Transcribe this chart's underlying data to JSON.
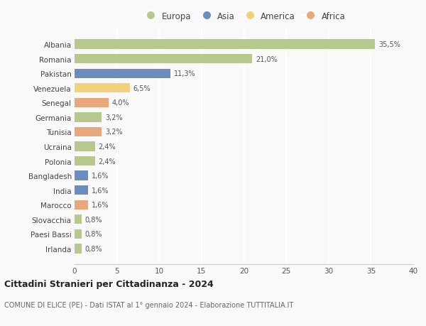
{
  "categories": [
    "Albania",
    "Romania",
    "Pakistan",
    "Venezuela",
    "Senegal",
    "Germania",
    "Tunisia",
    "Ucraina",
    "Polonia",
    "Bangladesh",
    "India",
    "Marocco",
    "Slovacchia",
    "Paesi Bassi",
    "Irlanda"
  ],
  "values": [
    35.5,
    21.0,
    11.3,
    6.5,
    4.0,
    3.2,
    3.2,
    2.4,
    2.4,
    1.6,
    1.6,
    1.6,
    0.8,
    0.8,
    0.8
  ],
  "labels": [
    "35,5%",
    "21,0%",
    "11,3%",
    "6,5%",
    "4,0%",
    "3,2%",
    "3,2%",
    "2,4%",
    "2,4%",
    "1,6%",
    "1,6%",
    "1,6%",
    "0,8%",
    "0,8%",
    "0,8%"
  ],
  "continents": [
    "Europa",
    "Europa",
    "Asia",
    "America",
    "Africa",
    "Europa",
    "Africa",
    "Europa",
    "Europa",
    "Asia",
    "Asia",
    "Africa",
    "Europa",
    "Europa",
    "Europa"
  ],
  "continent_colors": {
    "Europa": "#b5c98e",
    "Asia": "#6b8cbf",
    "America": "#f5d07a",
    "Africa": "#e8a87c"
  },
  "legend_order": [
    "Europa",
    "Asia",
    "America",
    "Africa"
  ],
  "xlim": [
    0,
    40
  ],
  "xticks": [
    0,
    5,
    10,
    15,
    20,
    25,
    30,
    35,
    40
  ],
  "title": "Cittadini Stranieri per Cittadinanza - 2024",
  "subtitle": "COMUNE DI ELICE (PE) - Dati ISTAT al 1° gennaio 2024 - Elaborazione TUTTITALIA.IT",
  "background_color": "#f9f9f9",
  "grid_color": "#ffffff",
  "bar_height": 0.65
}
